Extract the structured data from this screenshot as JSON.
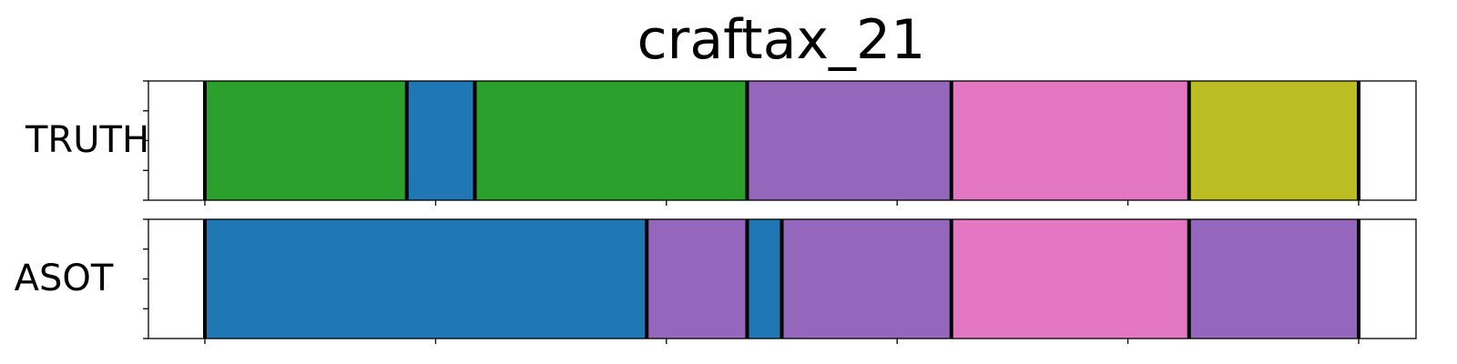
{
  "chart_data": {
    "type": "segmentation-timeline",
    "title": "craftax_21",
    "xlim": [
      0,
      100
    ],
    "grid": false,
    "legend": "none",
    "boundary_color": "#000000",
    "rows": [
      {
        "label": "TRUTH",
        "segments": [
          {
            "start": 0,
            "end": 17.5,
            "color": "#2ca02c"
          },
          {
            "start": 17.5,
            "end": 23.4,
            "color": "#1f77b4"
          },
          {
            "start": 23.4,
            "end": 47.0,
            "color": "#2ca02c"
          },
          {
            "start": 47.0,
            "end": 64.7,
            "color": "#9467bd"
          },
          {
            "start": 64.7,
            "end": 85.3,
            "color": "#e377c2"
          },
          {
            "start": 85.3,
            "end": 100,
            "color": "#bcbd22"
          }
        ]
      },
      {
        "label": "ASOT",
        "segments": [
          {
            "start": 0,
            "end": 38.3,
            "color": "#1f77b4"
          },
          {
            "start": 38.3,
            "end": 47.0,
            "color": "#9467bd"
          },
          {
            "start": 47.0,
            "end": 50.0,
            "color": "#1f77b4"
          },
          {
            "start": 50.0,
            "end": 64.7,
            "color": "#9467bd"
          },
          {
            "start": 64.7,
            "end": 85.3,
            "color": "#e377c2"
          },
          {
            "start": 85.3,
            "end": 100,
            "color": "#9467bd"
          }
        ]
      }
    ]
  }
}
